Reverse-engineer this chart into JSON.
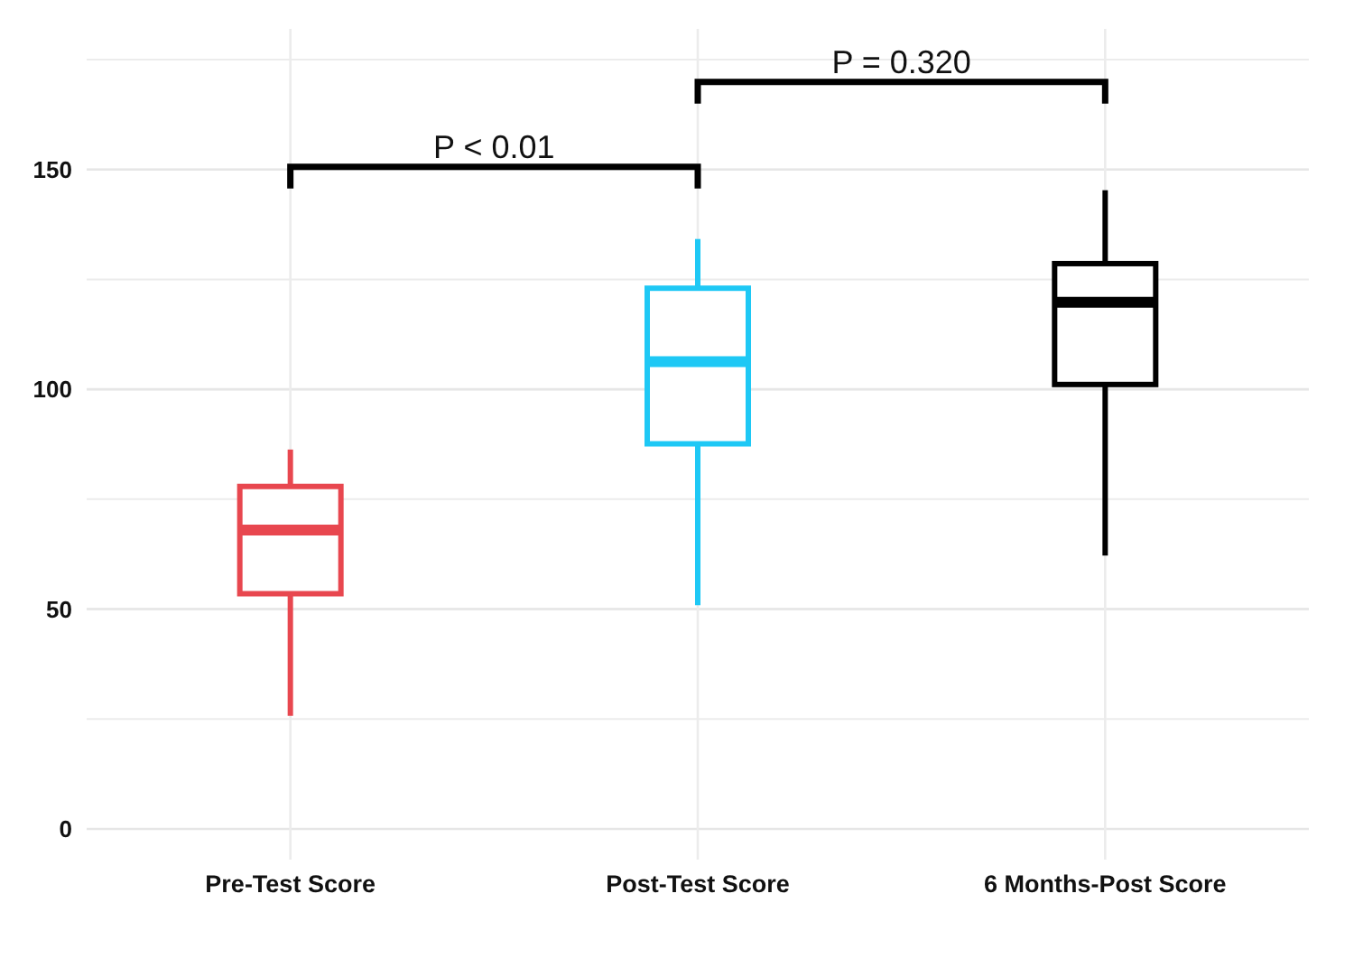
{
  "chart_data": {
    "type": "box",
    "categories": [
      "Pre-Test Score",
      "Post-Test Score",
      "6 Months-Post Score"
    ],
    "boxes": [
      {
        "low": 25.7,
        "q1": 53.5,
        "median": 68,
        "q3": 77.9,
        "high": 86.3
      },
      {
        "low": 50.9,
        "q1": 87.6,
        "median": 106.3,
        "q3": 123,
        "high": 134.2
      },
      {
        "low": 62.2,
        "q1": 101.1,
        "median": 119.8,
        "q3": 128.6,
        "high": 145.3
      }
    ],
    "colors": [
      "#e8474f",
      "#1ec8f5",
      "#000000"
    ],
    "ylim": [
      -7,
      182
    ],
    "yticks": [
      0,
      50,
      100,
      150
    ],
    "grid": true,
    "annotations": [
      "P < 0.01",
      "P = 0.320"
    ]
  }
}
